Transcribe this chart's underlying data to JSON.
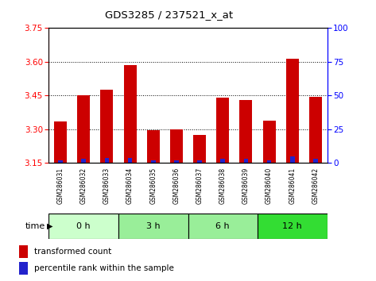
{
  "title": "GDS3285 / 237521_x_at",
  "samples": [
    "GSM286031",
    "GSM286032",
    "GSM286033",
    "GSM286034",
    "GSM286035",
    "GSM286036",
    "GSM286037",
    "GSM286038",
    "GSM286039",
    "GSM286040",
    "GSM286041",
    "GSM286042"
  ],
  "transformed_counts": [
    3.335,
    3.45,
    3.475,
    3.585,
    3.295,
    3.298,
    3.275,
    3.44,
    3.43,
    3.34,
    3.615,
    3.445
  ],
  "percentile_ranks": [
    2,
    3,
    4,
    4,
    2,
    2,
    2,
    3,
    3,
    2,
    5,
    3
  ],
  "ylim_left": [
    3.15,
    3.75
  ],
  "ylim_right": [
    0,
    100
  ],
  "yticks_left": [
    3.15,
    3.3,
    3.45,
    3.6,
    3.75
  ],
  "yticks_right": [
    0,
    25,
    50,
    75,
    100
  ],
  "bar_color": "#cc0000",
  "dot_color": "#2222cc",
  "baseline": 3.15,
  "groups": [
    {
      "label": "0 h",
      "start": 0,
      "end": 3,
      "color": "#ccffcc"
    },
    {
      "label": "3 h",
      "start": 3,
      "end": 6,
      "color": "#99ee99"
    },
    {
      "label": "6 h",
      "start": 6,
      "end": 9,
      "color": "#99ee99"
    },
    {
      "label": "12 h",
      "start": 9,
      "end": 12,
      "color": "#33dd33"
    }
  ],
  "xlabel": "time",
  "legend_bar_label": "transformed count",
  "legend_dot_label": "percentile rank within the sample",
  "grid_color": "#000000",
  "background_color": "#ffffff",
  "sample_bg_color": "#cccccc",
  "bar_width": 0.55
}
